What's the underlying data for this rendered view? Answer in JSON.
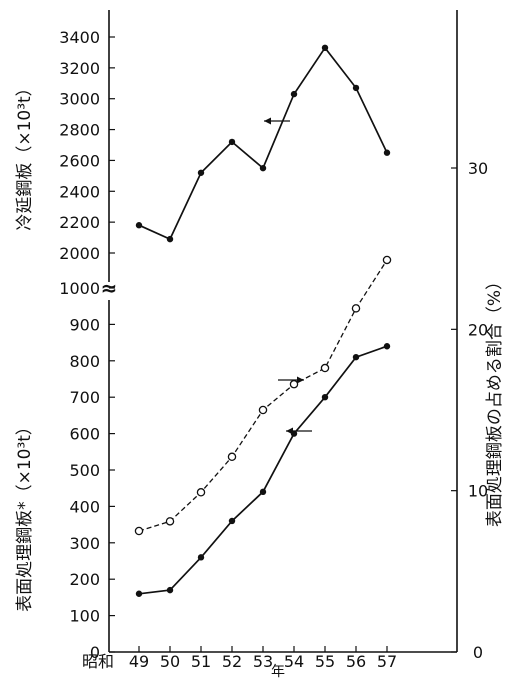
{
  "chart_data": {
    "type": "line",
    "x_prefix": "昭和",
    "categories": [
      "49",
      "50",
      "51",
      "52",
      "53",
      "54",
      "55",
      "56",
      "57"
    ],
    "xlabel": "年",
    "ylabel_left_upper": "冷延鋼板（×10³t）",
    "ylabel_left_lower": "表面処理鋼板*（×10³t）",
    "ylabel_right": "表面処理鋼板の占める割合（%）",
    "left_upper_ticks": [
      "2000",
      "2200",
      "2400",
      "2600",
      "2800",
      "3000",
      "3200",
      "3400"
    ],
    "left_lower_ticks": [
      "0",
      "100",
      "200",
      "300",
      "400",
      "500",
      "600",
      "700",
      "800",
      "900",
      "1000"
    ],
    "right_ticks": [
      "0",
      "10",
      "20",
      "30"
    ],
    "ylim_left_upper": [
      2000,
      3400
    ],
    "ylim_left_lower": [
      0,
      1000
    ],
    "ylim_right": [
      0,
      30
    ],
    "axis_break": "≈",
    "series": [
      {
        "key": "cold_rolled",
        "axis": "left_upper",
        "marker": "filled",
        "line": "solid",
        "values": [
          2180,
          2090,
          2520,
          2720,
          2550,
          3030,
          3330,
          3070,
          2650
        ]
      },
      {
        "key": "surface_treated",
        "axis": "left_lower",
        "marker": "filled",
        "line": "solid",
        "values": [
          160,
          170,
          260,
          360,
          440,
          600,
          700,
          810,
          840
        ]
      },
      {
        "key": "share",
        "axis": "right",
        "marker": "open",
        "line": "dashed",
        "values": [
          7.5,
          8.1,
          9.9,
          12.1,
          15.0,
          16.6,
          17.6,
          21.3,
          24.3
        ]
      }
    ],
    "arrows": [
      {
        "series": "cold_rolled",
        "direction": "left"
      },
      {
        "series": "surface_treated",
        "direction": "left"
      },
      {
        "series": "share",
        "direction": "right"
      }
    ],
    "colors": {
      "ink": "#111111",
      "background": "#ffffff"
    }
  }
}
